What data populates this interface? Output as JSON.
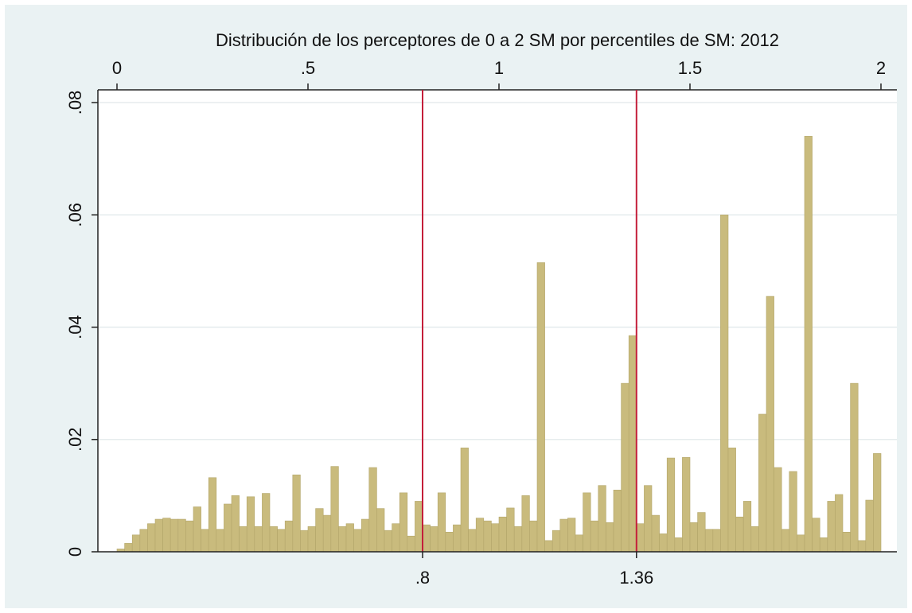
{
  "chart_data": {
    "type": "histogram",
    "title": "Distribución de los perceptores de 0 a 2 SM por percentiles de SM: 2012",
    "bins": [
      0,
      0.02,
      0.04,
      0.06,
      0.08,
      0.1,
      0.12,
      0.14,
      0.16,
      0.18,
      0.2,
      0.22,
      0.24,
      0.26,
      0.28,
      0.3,
      0.32,
      0.34,
      0.36,
      0.38,
      0.4,
      0.42,
      0.44,
      0.46,
      0.48,
      0.5,
      0.52,
      0.54,
      0.56,
      0.58,
      0.6,
      0.62,
      0.64,
      0.66,
      0.68,
      0.7,
      0.72,
      0.74,
      0.76,
      0.78,
      0.8,
      0.82,
      0.84,
      0.86,
      0.88,
      0.9,
      0.92,
      0.94,
      0.96,
      0.98,
      1,
      1.02,
      1.04,
      1.06,
      1.08,
      1.1,
      1.12,
      1.14,
      1.16,
      1.18,
      1.2,
      1.22,
      1.24,
      1.26,
      1.28,
      1.3,
      1.32,
      1.34,
      1.36,
      1.38,
      1.4,
      1.42,
      1.44,
      1.46,
      1.48,
      1.5,
      1.52,
      1.54,
      1.56,
      1.58,
      1.6,
      1.62,
      1.64,
      1.66,
      1.68,
      1.7,
      1.72,
      1.74,
      1.76,
      1.78,
      1.8,
      1.82,
      1.84,
      1.86,
      1.88,
      1.9,
      1.92,
      1.94,
      1.96,
      1.98,
      2
    ],
    "values": [
      0.0005,
      0.0015,
      0.003,
      0.004,
      0.005,
      0.0058,
      0.006,
      0.0058,
      0.0058,
      0.0055,
      0.008,
      0.004,
      0.0132,
      0.004,
      0.0085,
      0.01,
      0.0045,
      0.0098,
      0.0045,
      0.0104,
      0.0045,
      0.004,
      0.0055,
      0.0137,
      0.0038,
      0.0045,
      0.0077,
      0.0065,
      0.0152,
      0.0045,
      0.005,
      0.004,
      0.0058,
      0.015,
      0.0077,
      0.0038,
      0.005,
      0.0105,
      0.0028,
      0.009,
      0.0048,
      0.0045,
      0.0105,
      0.0035,
      0.0048,
      0.0185,
      0.004,
      0.006,
      0.0055,
      0.005,
      0.0062,
      0.0078,
      0.0045,
      0.01,
      0.0055,
      0.0515,
      0.002,
      0.0038,
      0.0058,
      0.006,
      0.003,
      0.0105,
      0.0055,
      0.0118,
      0.0052,
      0.011,
      0.03,
      0.0385,
      0.005,
      0.0118,
      0.0065,
      0.0032,
      0.0167,
      0.0025,
      0.0168,
      0.0052,
      0.007,
      0.004,
      0.004,
      0.06,
      0.0185,
      0.0062,
      0.009,
      0.0045,
      0.0245,
      0.0455,
      0.015,
      0.004,
      0.0143,
      0.003,
      0.074,
      0.006,
      0.0025,
      0.009,
      0.0102,
      0.0035,
      0.03,
      0.002,
      0.0092,
      0.0175
    ],
    "color": "#c9bb7d",
    "xlim": [
      0,
      2
    ],
    "xticks": [
      0,
      {
        "value": 0.5,
        "label": ".5"
      },
      1,
      1.5,
      2
    ],
    "xlines": [
      {
        "value": 0.8,
        "label": ".8"
      },
      {
        "value": 1.36,
        "label": "1.36"
      }
    ],
    "xline_color": "#c41e3a",
    "ylim": [
      0,
      0.08
    ],
    "yticks": [
      0,
      {
        "value": 0.02,
        "label": ".02"
      },
      {
        "value": 0.04,
        "label": ".04"
      },
      {
        "value": 0.06,
        "label": ".06"
      },
      {
        "value": 0.08,
        "label": ".08"
      }
    ],
    "grid": true
  }
}
